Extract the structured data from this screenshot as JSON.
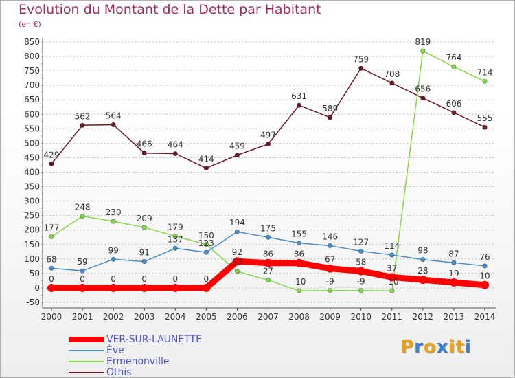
{
  "header": {
    "title": "Evolution du Montant de la Dette par Habitant",
    "unit": "(en €)"
  },
  "colors": {
    "title": "#a12a5e",
    "grid": "#bbbbbb",
    "axis_text": "#333333",
    "legend_text": "#4b55c9"
  },
  "chart_data": {
    "type": "line",
    "title": "Evolution du Montant de la Dette par Habitant",
    "ylabel": "(en €)",
    "xlabel": "",
    "x": [
      "2000",
      "2001",
      "2002",
      "2003",
      "2004",
      "2005",
      "2006",
      "2007",
      "2008",
      "2009",
      "2010",
      "2011",
      "2012",
      "2013",
      "2014"
    ],
    "ylim": [
      -50,
      850
    ],
    "yticks": [
      -50,
      0,
      50,
      100,
      150,
      200,
      250,
      300,
      350,
      400,
      450,
      500,
      550,
      600,
      650,
      700,
      750,
      800,
      850
    ],
    "grid": "horizontal dashed",
    "legend_position": "bottom-left",
    "series": [
      {
        "name": "VER-SUR-LAUNETTE",
        "color": "#ff0000",
        "values": [
          0,
          0,
          0,
          0,
          0,
          0,
          92,
          86,
          86,
          67,
          58,
          37,
          28,
          19,
          10
        ],
        "labels": [
          "0",
          "0",
          "0",
          "0",
          "0",
          "0",
          "92",
          "86",
          "86",
          "67",
          "58",
          "37",
          "28",
          "19",
          "10"
        ]
      },
      {
        "name": "Ève",
        "color": "#4a8ec7",
        "values": [
          68,
          59,
          99,
          91,
          137,
          123,
          194,
          175,
          155,
          146,
          127,
          114,
          98,
          87,
          76
        ],
        "labels": [
          "68",
          "59",
          "99",
          "91",
          "137",
          "123",
          "194",
          "175",
          "155",
          "146",
          "127",
          "114",
          "98",
          "87",
          "76"
        ]
      },
      {
        "name": "Ermenonville",
        "color": "#86d64a",
        "values": [
          177,
          248,
          230,
          209,
          179,
          150,
          57,
          27,
          -10,
          -9,
          -9,
          -10,
          819,
          764,
          714
        ],
        "labels": [
          "177",
          "248",
          "230",
          "209",
          "179",
          "150",
          "57",
          "27",
          "-10",
          "-9",
          "-9",
          "-10",
          "819",
          "764",
          "714"
        ]
      },
      {
        "name": "Othis",
        "color": "#6b1a22",
        "values": [
          429,
          562,
          564,
          466,
          464,
          414,
          459,
          497,
          631,
          589,
          759,
          708,
          656,
          606,
          555
        ],
        "labels": [
          "429",
          "562",
          "564",
          "466",
          "464",
          "414",
          "459",
          "497",
          "631",
          "589",
          "759",
          "708",
          "656",
          "606",
          "555"
        ]
      }
    ]
  },
  "legend": {
    "items": [
      {
        "label": "VER-SUR-LAUNETTE",
        "color": "#ff0000"
      },
      {
        "label": "Ève",
        "color": "#4a8ec7"
      },
      {
        "label": "Ermenonville",
        "color": "#86d64a"
      },
      {
        "label": "Othis",
        "color": "#6b1a22"
      }
    ]
  },
  "logo": {
    "letters": [
      "P",
      "r",
      "o",
      "x",
      "i",
      "t",
      "i"
    ],
    "colors": [
      "#e8a317",
      "#3a7fd0",
      "#e8a317",
      "#3a7fd0",
      "#e8a317",
      "#e8a317",
      "#3a7fd0"
    ]
  }
}
